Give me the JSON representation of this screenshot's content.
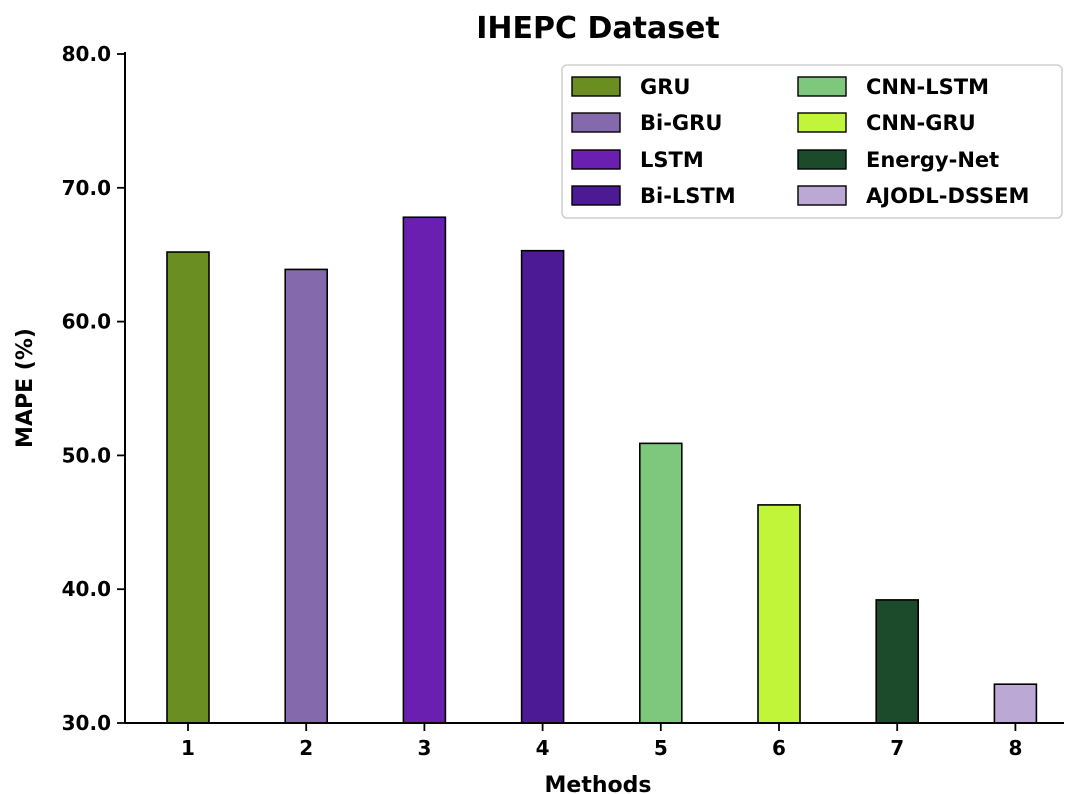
{
  "chart_data": {
    "type": "bar",
    "title": "IHEPC Dataset",
    "xlabel": "Methods",
    "ylabel": "MAPE (%)",
    "ylim": [
      30,
      80
    ],
    "yticks": [
      "30.0",
      "40.0",
      "50.0",
      "60.0",
      "70.0",
      "80.0"
    ],
    "categories": [
      "1",
      "2",
      "3",
      "4",
      "5",
      "6",
      "7",
      "8"
    ],
    "series": [
      {
        "name": "GRU",
        "color": "#6b8e23",
        "values": [
          65.2,
          null,
          null,
          null,
          null,
          null,
          null,
          null
        ]
      },
      {
        "name": "Bi-GRU",
        "color": "#8469ad",
        "values": [
          null,
          63.9,
          null,
          null,
          null,
          null,
          null,
          null
        ]
      },
      {
        "name": "LSTM",
        "color": "#6a1fb0",
        "values": [
          null,
          null,
          67.8,
          null,
          null,
          null,
          null,
          null
        ]
      },
      {
        "name": "Bi-LSTM",
        "color": "#4b1a94",
        "values": [
          null,
          null,
          null,
          65.3,
          null,
          null,
          null,
          null
        ]
      },
      {
        "name": "CNN-LSTM",
        "color": "#7ec87e",
        "values": [
          null,
          null,
          null,
          null,
          50.9,
          null,
          null,
          null
        ]
      },
      {
        "name": "CNN-GRU",
        "color": "#c0f53a",
        "values": [
          null,
          null,
          null,
          null,
          null,
          46.3,
          null,
          null
        ]
      },
      {
        "name": "Energy-Net",
        "color": "#1c4b2c",
        "values": [
          null,
          null,
          null,
          null,
          null,
          null,
          39.2,
          null
        ]
      },
      {
        "name": "AJODL-DSSEM",
        "color": "#bba8d4",
        "values": [
          null,
          null,
          null,
          null,
          null,
          null,
          null,
          32.9
        ]
      }
    ],
    "grid": false,
    "legend_position": "top-right",
    "legend_columns": 2
  }
}
